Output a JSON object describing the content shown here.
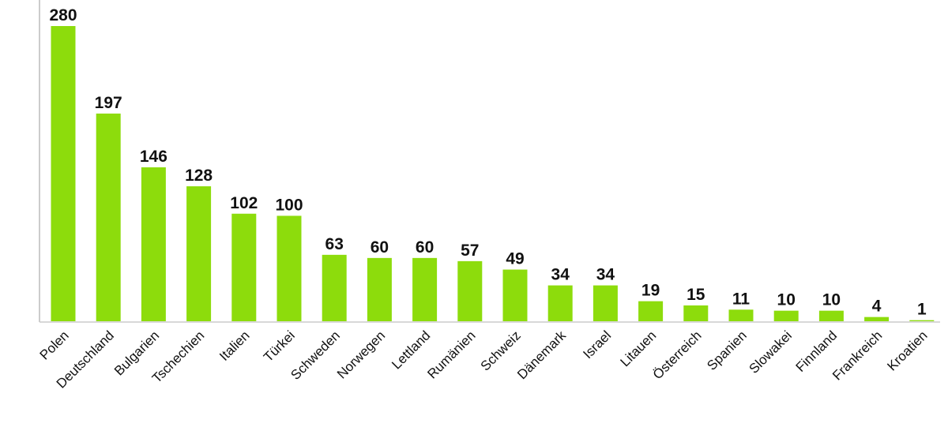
{
  "chart_data": {
    "type": "bar",
    "categories": [
      "Polen",
      "Deutschland",
      "Bulgarien",
      "Tschechien",
      "Italien",
      "Türkei",
      "Schweden",
      "Norwegen",
      "Lettland",
      "Rumänien",
      "Schweiz",
      "Dänemark",
      "Israel",
      "Litauen",
      "Österreich",
      "Spanien",
      "Slowakei",
      "Finnland",
      "Frankreich",
      "Kroatien"
    ],
    "values": [
      280,
      197,
      146,
      128,
      102,
      100,
      63,
      60,
      60,
      57,
      49,
      34,
      34,
      19,
      15,
      11,
      10,
      10,
      4,
      1
    ],
    "color": "#8ddc0c"
  }
}
